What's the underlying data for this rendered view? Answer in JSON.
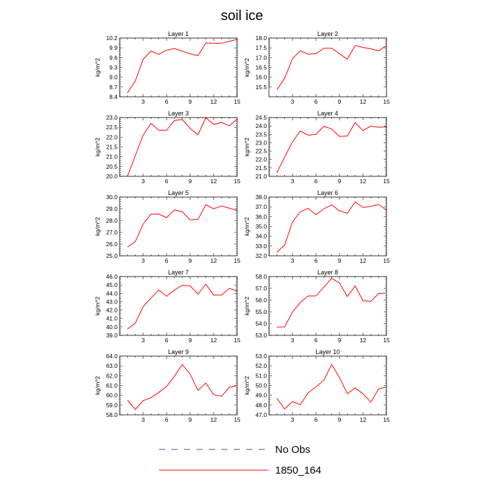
{
  "title": "soil ice",
  "legend": [
    {
      "label": "No Obs",
      "color": "#4c4c99",
      "dash": "dashed"
    },
    {
      "label": "1850_164",
      "color": "#ff0000",
      "dash": "solid"
    }
  ],
  "chart_data": [
    {
      "type": "line",
      "title": "Layer 1",
      "ylabel": "kg/m^2",
      "x": [
        1,
        2,
        3,
        4,
        5,
        6,
        7,
        8,
        9,
        10,
        11,
        12,
        13,
        14,
        15
      ],
      "xticks": [
        3,
        6,
        9,
        12,
        15
      ],
      "xlim": [
        0,
        15
      ],
      "ylim": [
        8.4,
        10.2
      ],
      "yticks": [
        "8.4",
        "8.7",
        "9.0",
        "9.3",
        "9.6",
        "9.9",
        "10.2"
      ],
      "series": [
        {
          "name": "1850_164",
          "values": [
            8.52,
            8.88,
            9.55,
            9.8,
            9.7,
            9.83,
            9.88,
            9.8,
            9.72,
            9.66,
            10.05,
            10.04,
            10.04,
            10.1,
            10.16
          ]
        }
      ]
    },
    {
      "type": "line",
      "title": "Layer 2",
      "ylabel": "kg/m^2",
      "x": [
        1,
        2,
        3,
        4,
        5,
        6,
        7,
        8,
        9,
        10,
        11,
        12,
        13,
        14,
        15
      ],
      "xticks": [
        3,
        6,
        9,
        12,
        15
      ],
      "xlim": [
        0,
        15
      ],
      "ylim": [
        15.0,
        18.0
      ],
      "yticks": [
        "15.5",
        "16.0",
        "16.5",
        "17.0",
        "17.5",
        "18.0"
      ],
      "series": [
        {
          "name": "1850_164",
          "values": [
            15.35,
            15.95,
            16.95,
            17.35,
            17.18,
            17.2,
            17.48,
            17.48,
            17.2,
            16.92,
            17.62,
            17.52,
            17.45,
            17.35,
            17.62
          ]
        }
      ]
    },
    {
      "type": "line",
      "title": "Layer 3",
      "ylabel": "kg/m^2",
      "x": [
        1,
        2,
        3,
        4,
        5,
        6,
        7,
        8,
        9,
        10,
        11,
        12,
        13,
        14,
        15
      ],
      "xticks": [
        3,
        6,
        9,
        12,
        15
      ],
      "xlim": [
        0,
        15
      ],
      "ylim": [
        20.0,
        23.0
      ],
      "yticks": [
        "20.0",
        "20.5",
        "21.0",
        "21.5",
        "22.0",
        "22.5",
        "23.0"
      ],
      "series": [
        {
          "name": "1850_164",
          "values": [
            20.0,
            21.05,
            22.1,
            22.7,
            22.35,
            22.35,
            22.85,
            22.9,
            22.45,
            22.12,
            23.0,
            22.65,
            22.75,
            22.58,
            22.92
          ]
        }
      ]
    },
    {
      "type": "line",
      "title": "Layer 4",
      "ylabel": "kg/m^2",
      "x": [
        1,
        2,
        3,
        4,
        5,
        6,
        7,
        8,
        9,
        10,
        11,
        12,
        13,
        14,
        15
      ],
      "xticks": [
        3,
        6,
        9,
        12,
        15
      ],
      "xlim": [
        0,
        15
      ],
      "ylim": [
        21.0,
        24.5
      ],
      "yticks": [
        "21.0",
        "21.5",
        "22.0",
        "22.5",
        "23.0",
        "23.5",
        "24.0",
        "24.5"
      ],
      "series": [
        {
          "name": "1850_164",
          "values": [
            21.2,
            22.15,
            23.05,
            23.7,
            23.45,
            23.5,
            23.98,
            23.82,
            23.38,
            23.4,
            24.2,
            23.72,
            24.0,
            23.92,
            23.95
          ]
        }
      ]
    },
    {
      "type": "line",
      "title": "Layer 5",
      "ylabel": "kg/m^2",
      "x": [
        1,
        2,
        3,
        4,
        5,
        6,
        7,
        8,
        9,
        10,
        11,
        12,
        13,
        14,
        15
      ],
      "xticks": [
        3,
        6,
        9,
        12,
        15
      ],
      "xlim": [
        0,
        15
      ],
      "ylim": [
        25.0,
        30.0
      ],
      "yticks": [
        "25.0",
        "26.0",
        "27.0",
        "28.0",
        "29.0",
        "30.0"
      ],
      "series": [
        {
          "name": "1850_164",
          "values": [
            25.75,
            26.2,
            27.7,
            28.55,
            28.55,
            28.25,
            28.9,
            28.75,
            28.05,
            28.1,
            29.35,
            29.0,
            29.25,
            29.05,
            28.85
          ]
        }
      ]
    },
    {
      "type": "line",
      "title": "Layer 6",
      "ylabel": "kg/m^2",
      "x": [
        1,
        2,
        3,
        4,
        5,
        6,
        7,
        8,
        9,
        10,
        11,
        12,
        13,
        14,
        15
      ],
      "xticks": [
        3,
        6,
        9,
        12,
        15
      ],
      "xlim": [
        0,
        15
      ],
      "ylim": [
        32.0,
        38.0
      ],
      "yticks": [
        "32.0",
        "33.0",
        "34.0",
        "35.0",
        "36.0",
        "37.0",
        "38.0"
      ],
      "series": [
        {
          "name": "1850_164",
          "values": [
            32.35,
            33.1,
            35.45,
            36.5,
            36.85,
            36.2,
            36.8,
            37.2,
            36.6,
            36.35,
            37.5,
            36.95,
            37.05,
            37.25,
            36.65
          ]
        }
      ]
    },
    {
      "type": "line",
      "title": "Layer 7",
      "ylabel": "kg/m^2",
      "x": [
        1,
        2,
        3,
        4,
        5,
        6,
        7,
        8,
        9,
        10,
        11,
        12,
        13,
        14,
        15
      ],
      "xticks": [
        3,
        6,
        9,
        12,
        15
      ],
      "xlim": [
        0,
        15
      ],
      "ylim": [
        39.0,
        46.0
      ],
      "yticks": [
        "39.0",
        "40.0",
        "41.0",
        "42.0",
        "43.0",
        "44.0",
        "45.0",
        "46.0"
      ],
      "series": [
        {
          "name": "1850_164",
          "values": [
            39.75,
            40.45,
            42.4,
            43.45,
            44.4,
            43.65,
            44.4,
            44.95,
            44.9,
            43.9,
            45.1,
            43.8,
            43.8,
            44.6,
            44.3
          ]
        }
      ]
    },
    {
      "type": "line",
      "title": "Layer 8",
      "ylabel": "kg/m^2",
      "x": [
        1,
        2,
        3,
        4,
        5,
        6,
        7,
        8,
        9,
        10,
        11,
        12,
        13,
        14,
        15
      ],
      "xticks": [
        3,
        6,
        9,
        12,
        15
      ],
      "xlim": [
        0,
        15
      ],
      "ylim": [
        53.0,
        58.0
      ],
      "yticks": [
        "53.0",
        "54.0",
        "55.0",
        "56.0",
        "57.0",
        "58.0"
      ],
      "series": [
        {
          "name": "1850_164",
          "values": [
            53.7,
            53.72,
            54.98,
            55.8,
            56.35,
            56.35,
            57.1,
            57.85,
            57.45,
            56.3,
            57.2,
            55.95,
            55.9,
            56.55,
            56.6
          ]
        }
      ]
    },
    {
      "type": "line",
      "title": "Layer 9",
      "ylabel": "kg/m^2",
      "x": [
        1,
        2,
        3,
        4,
        5,
        6,
        7,
        8,
        9,
        10,
        11,
        12,
        13,
        14,
        15
      ],
      "xticks": [
        3,
        6,
        9,
        12,
        15
      ],
      "xlim": [
        0,
        15
      ],
      "ylim": [
        58.0,
        64.0
      ],
      "yticks": [
        "58.0",
        "59.0",
        "60.0",
        "61.0",
        "62.0",
        "63.0",
        "64.0"
      ],
      "series": [
        {
          "name": "1850_164",
          "values": [
            59.5,
            58.55,
            59.45,
            59.75,
            60.3,
            60.9,
            61.95,
            63.15,
            62.15,
            60.5,
            61.25,
            60.05,
            59.9,
            60.8,
            61.0
          ]
        }
      ]
    },
    {
      "type": "line",
      "title": "Layer 10",
      "ylabel": "kg/m^2",
      "x": [
        1,
        2,
        3,
        4,
        5,
        6,
        7,
        8,
        9,
        10,
        11,
        12,
        13,
        14,
        15
      ],
      "xticks": [
        3,
        6,
        9,
        12,
        15
      ],
      "xlim": [
        0,
        15
      ],
      "ylim": [
        47.0,
        53.0
      ],
      "yticks": [
        "47.0",
        "48.0",
        "49.0",
        "50.0",
        "51.0",
        "52.0",
        "53.0"
      ],
      "series": [
        {
          "name": "1850_164",
          "values": [
            48.7,
            47.6,
            48.35,
            48.05,
            49.25,
            49.85,
            50.55,
            52.15,
            50.8,
            49.15,
            49.75,
            49.15,
            48.3,
            49.65,
            49.85
          ]
        }
      ]
    }
  ]
}
